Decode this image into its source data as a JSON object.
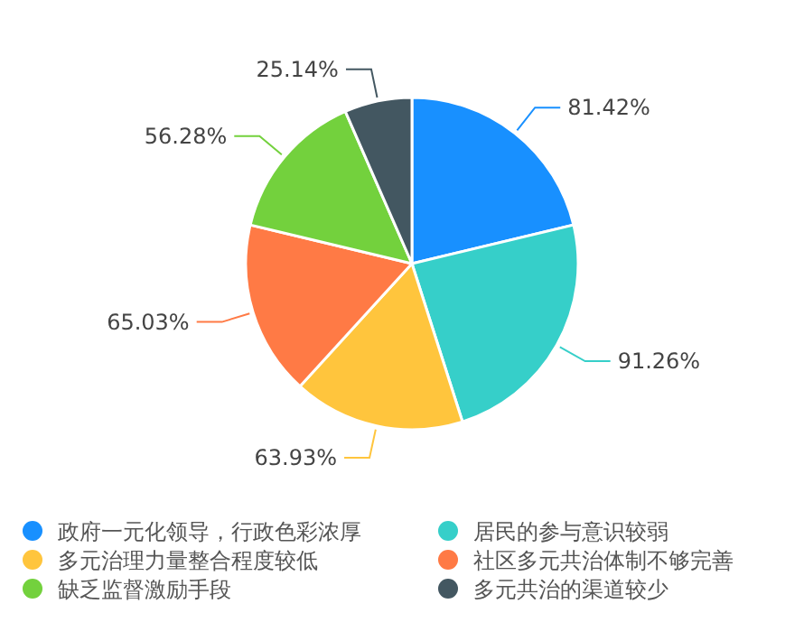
{
  "chart_data": {
    "type": "pie",
    "categories": [
      "政府一元化领导，行政色彩浓厚",
      "居民的参与意识较弱",
      "多元治理力量整合程度较低",
      "社区多元共治体制不够完善",
      "缺乏监督激励手段",
      "多元共治的渠道较少"
    ],
    "values": [
      81.42,
      91.26,
      63.93,
      65.03,
      56.28,
      25.14
    ],
    "colors": [
      "#1890ff",
      "#36cfc9",
      "#ffc53d",
      "#ff7a45",
      "#73d13d",
      "#435761"
    ],
    "value_labels": [
      "81.42%",
      "91.26%",
      "63.93%",
      "65.03%",
      "56.28%",
      "25.14%"
    ],
    "legend": "bottom"
  }
}
